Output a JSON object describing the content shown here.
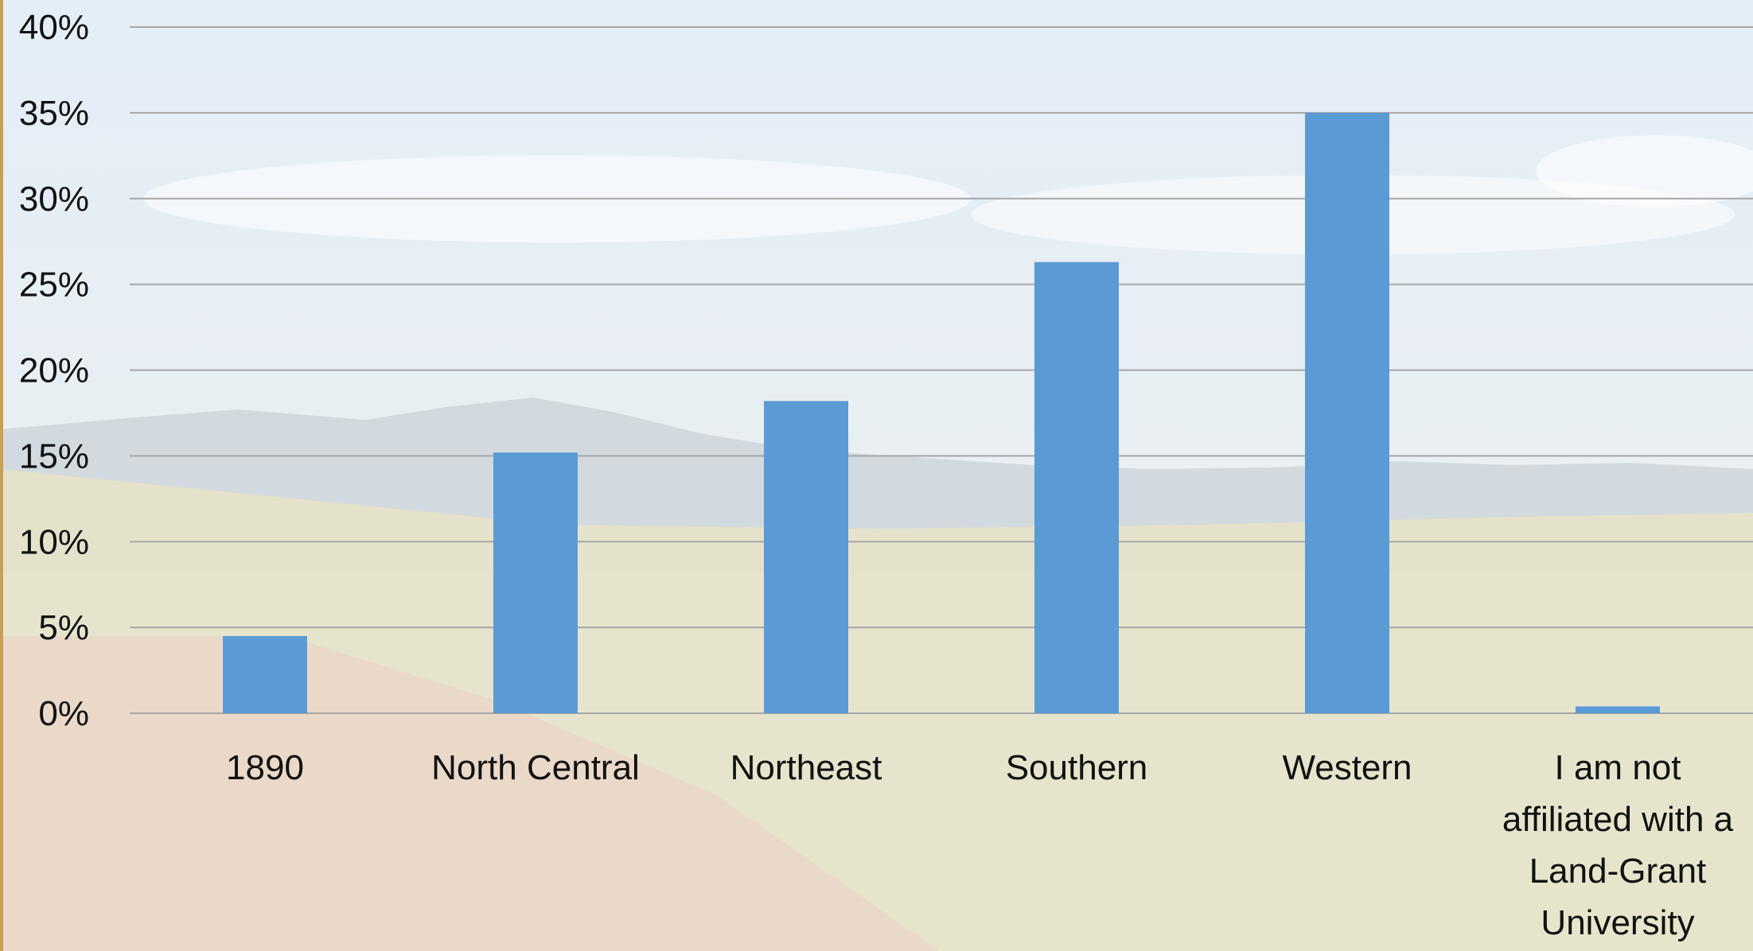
{
  "colors": {
    "bar": "#5B9BD5",
    "grid": "#A6A6A6",
    "text": "#111111",
    "sky_top": "#E4EEF7",
    "sky_bottom": "#EEF0EE",
    "hills": "#C9D1D8",
    "grassland": "#E6E2C8",
    "road": "#EAD6C7",
    "left_edge_accent": "#C8A050"
  },
  "chart_data": {
    "type": "bar",
    "categories": [
      "1890",
      "North Central",
      "Northeast",
      "Southern",
      "Western",
      "I am not affiliated with a Land-Grant University"
    ],
    "category_label_lines": [
      [
        "1890"
      ],
      [
        "North Central"
      ],
      [
        "Northeast"
      ],
      [
        "Southern"
      ],
      [
        "Western"
      ],
      [
        "I am not",
        "affiliated with a",
        "Land-Grant",
        "University"
      ]
    ],
    "values": [
      4.5,
      15.2,
      18.2,
      26.3,
      35.0,
      0.4
    ],
    "ylim": [
      0,
      40
    ],
    "yticks": [
      0,
      5,
      10,
      15,
      20,
      25,
      30,
      35,
      40
    ],
    "ytick_labels": [
      "0%",
      "5%",
      "10%",
      "15%",
      "20%",
      "25%",
      "30%",
      "35%",
      "40%"
    ],
    "grid": true,
    "legend": "none",
    "title": "",
    "xlabel": "",
    "ylabel": ""
  }
}
